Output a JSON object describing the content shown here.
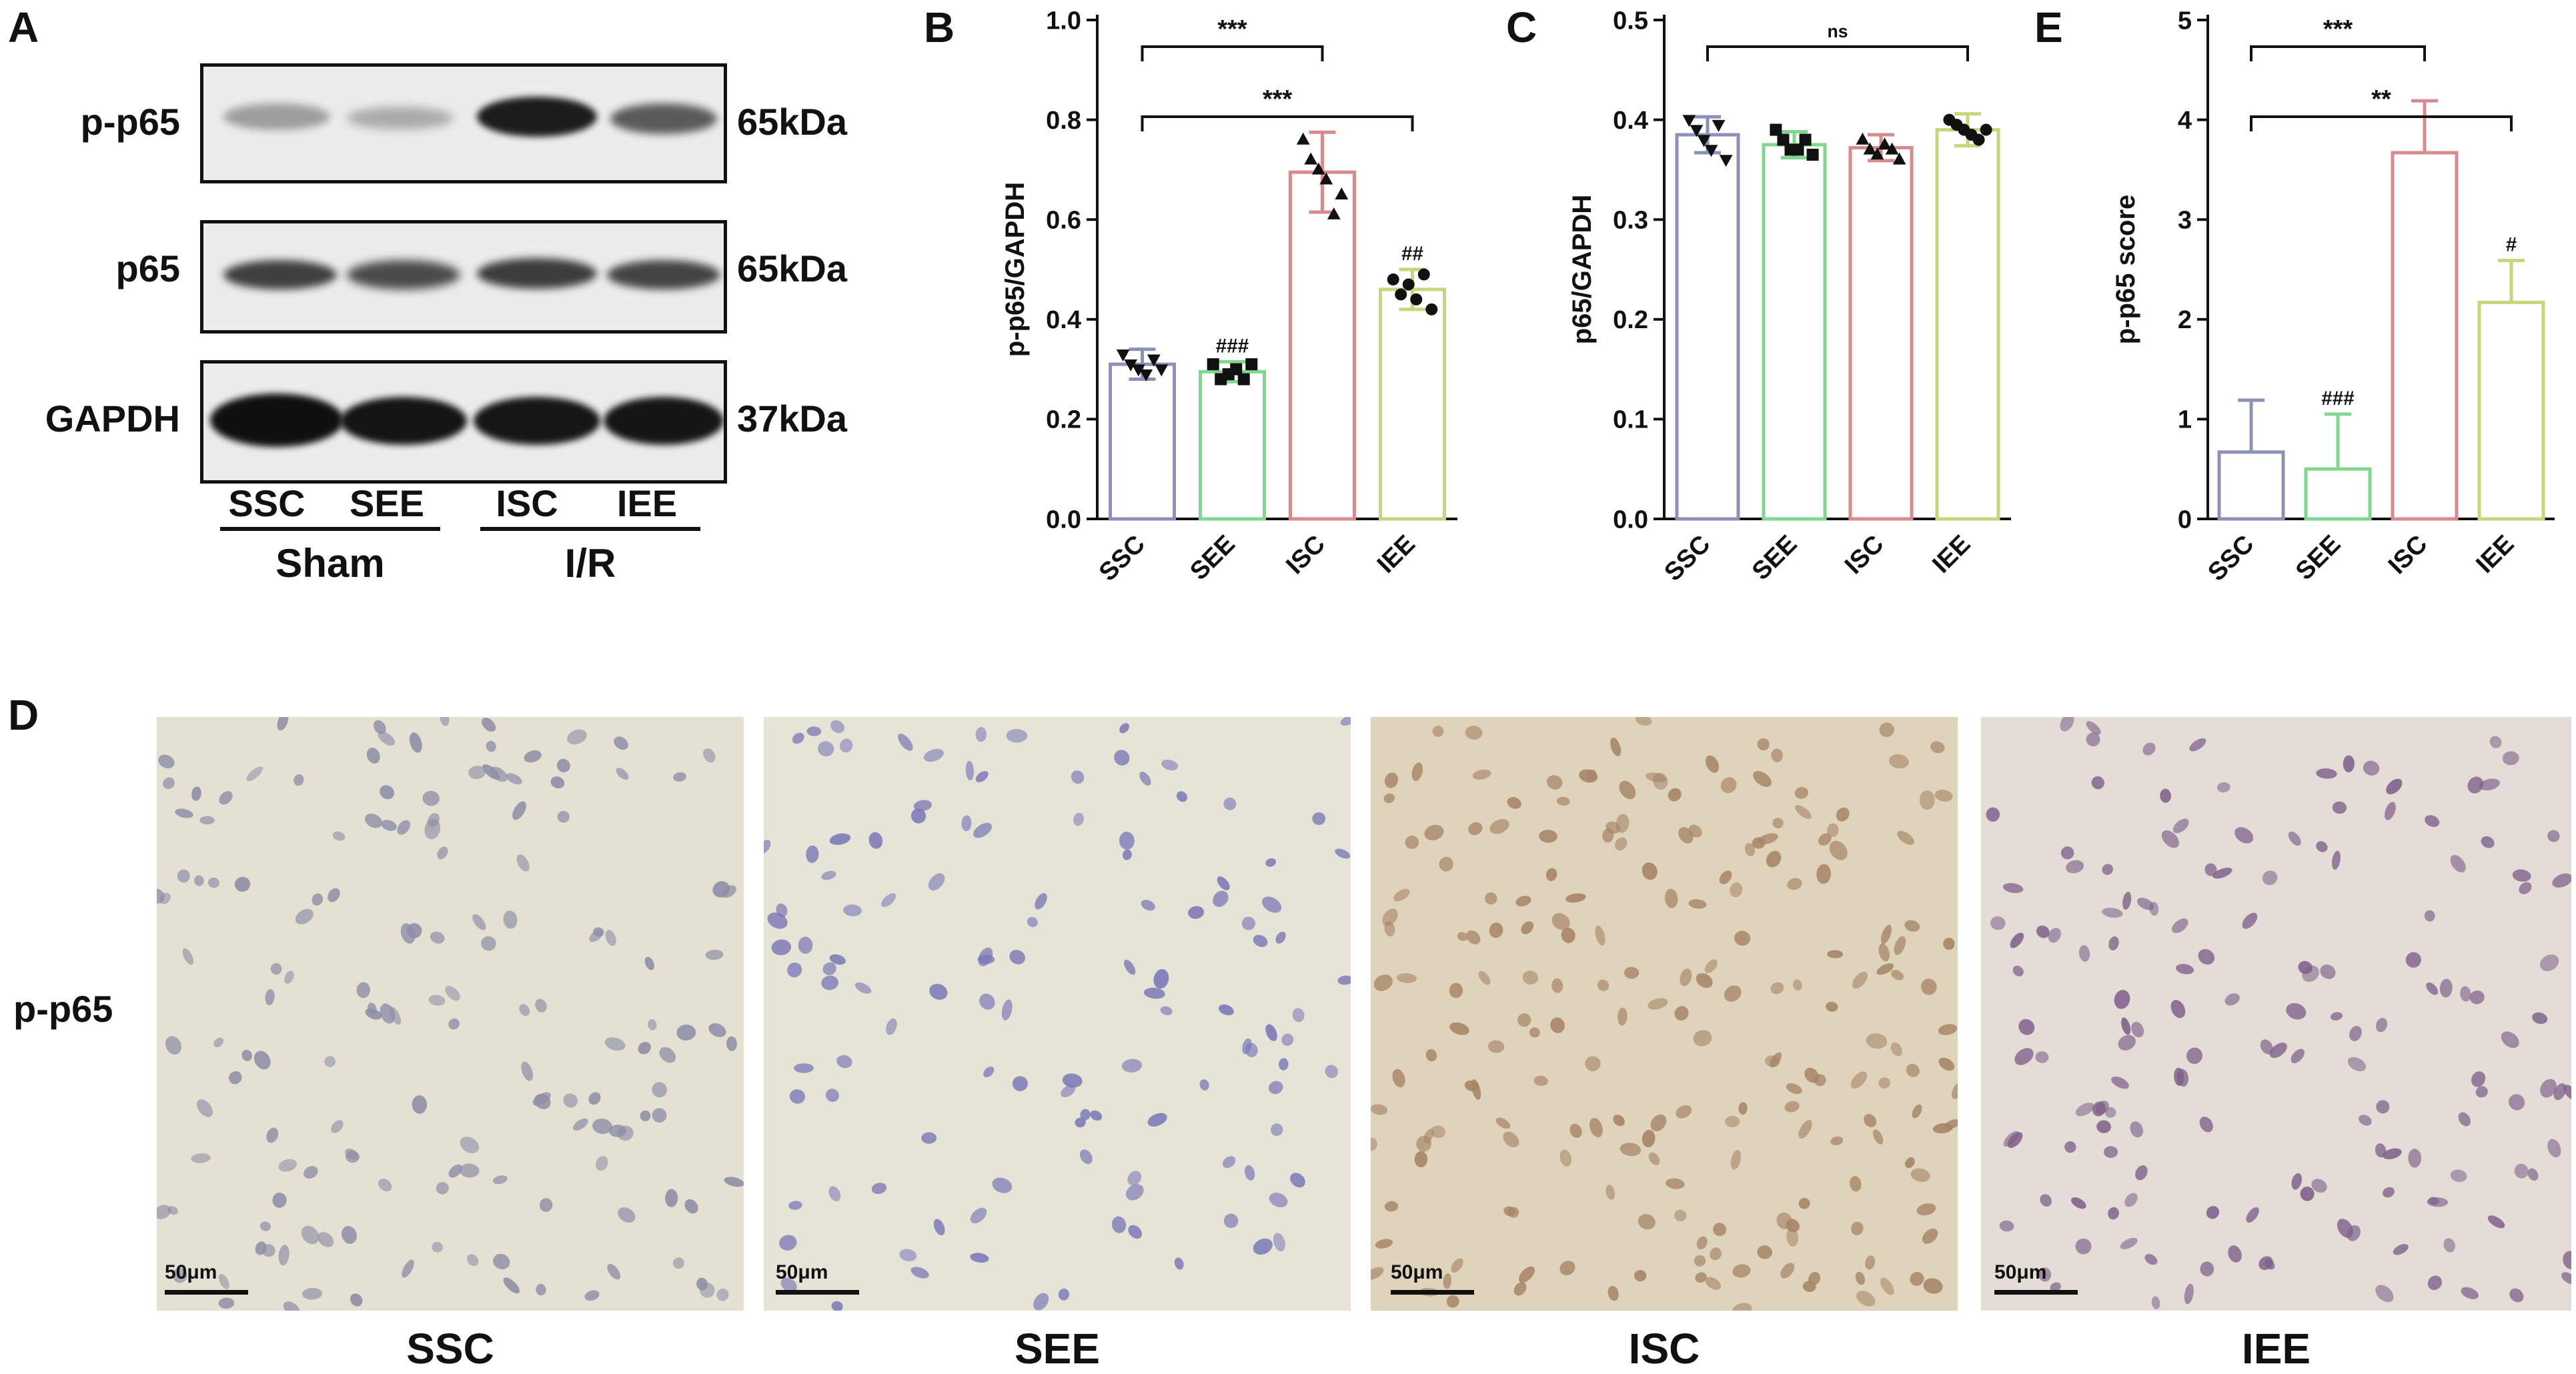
{
  "panel_letters": {
    "a": "A",
    "b": "B",
    "c": "C",
    "d": "D",
    "e": "E"
  },
  "blot": {
    "rows": [
      {
        "label": "p-p65",
        "kda": "65kDa"
      },
      {
        "label": "p65",
        "kda": "65kDa"
      },
      {
        "label": "GAPDH",
        "kda": "37kDa"
      }
    ],
    "lanes": [
      "SSC",
      "SEE",
      "ISC",
      "IEE"
    ],
    "groups": [
      "Sham",
      "I/R"
    ]
  },
  "chart_data": [
    {
      "type": "bar",
      "panel": "B",
      "categories": [
        "SSC",
        "SEE",
        "ISC",
        "IEE"
      ],
      "values": [
        0.31,
        0.295,
        0.695,
        0.46
      ],
      "errors": [
        0.03,
        0.02,
        0.08,
        0.04
      ],
      "points": [
        [
          0.33,
          0.31,
          0.3,
          0.29,
          0.32,
          0.3
        ],
        [
          0.31,
          0.28,
          0.29,
          0.3,
          0.28,
          0.31
        ],
        [
          0.76,
          0.72,
          0.7,
          0.68,
          0.61,
          0.65
        ],
        [
          0.48,
          0.45,
          0.47,
          0.44,
          0.49,
          0.42
        ]
      ],
      "markers": [
        "triangle-down",
        "square",
        "triangle-up",
        "circle"
      ],
      "colors": [
        "#8b91b8",
        "#7fd88e",
        "#d98a8c",
        "#c6d67a"
      ],
      "ylabel": "p-p65/GAPDH",
      "ylim": [
        0,
        1.0
      ],
      "yticks": [
        "0.0",
        "0.2",
        "0.4",
        "0.6",
        "0.8",
        "1.0"
      ],
      "group_marks": [
        "",
        "###",
        "",
        "##"
      ],
      "brackets": [
        {
          "from": 0,
          "to": 2,
          "label": "***"
        },
        {
          "from": 0,
          "to": 3,
          "label": "***"
        }
      ]
    },
    {
      "type": "bar",
      "panel": "C",
      "categories": [
        "SSC",
        "SEE",
        "ISC",
        "IEE"
      ],
      "values": [
        0.385,
        0.375,
        0.372,
        0.39
      ],
      "errors": [
        0.018,
        0.013,
        0.013,
        0.016
      ],
      "points": [
        [
          0.4,
          0.39,
          0.38,
          0.37,
          0.395,
          0.36
        ],
        [
          0.39,
          0.38,
          0.37,
          0.37,
          0.38,
          0.365
        ],
        [
          0.38,
          0.37,
          0.365,
          0.375,
          0.37,
          0.36
        ],
        [
          0.4,
          0.395,
          0.39,
          0.385,
          0.38,
          0.39
        ]
      ],
      "markers": [
        "triangle-down",
        "square",
        "triangle-up",
        "circle"
      ],
      "colors": [
        "#8b91b8",
        "#7fd88e",
        "#d98a8c",
        "#c6d67a"
      ],
      "ylabel": "p65/GAPDH",
      "ylim": [
        0,
        0.5
      ],
      "yticks": [
        "0.0",
        "0.1",
        "0.2",
        "0.3",
        "0.4",
        "0.5"
      ],
      "group_marks": [
        "",
        "",
        "",
        ""
      ],
      "brackets": [
        {
          "from": 0,
          "to": 3,
          "label": "ns"
        }
      ]
    },
    {
      "type": "bar",
      "panel": "E",
      "categories": [
        "SSC",
        "SEE",
        "ISC",
        "IEE"
      ],
      "values": [
        0.67,
        0.5,
        3.67,
        2.17
      ],
      "errors": [
        0.52,
        0.55,
        0.52,
        0.42
      ],
      "points": [
        [],
        [],
        [],
        []
      ],
      "markers": [
        "",
        "",
        "",
        ""
      ],
      "colors": [
        "#8b91b8",
        "#7fd88e",
        "#d98a8c",
        "#c6d67a"
      ],
      "ylabel": "p-p65 score",
      "ylim": [
        0,
        5
      ],
      "yticks": [
        "0",
        "1",
        "2",
        "3",
        "4",
        "5"
      ],
      "group_marks": [
        "",
        "###",
        "",
        "#"
      ],
      "brackets": [
        {
          "from": 0,
          "to": 2,
          "label": "***"
        },
        {
          "from": 0,
          "to": 3,
          "label": "**"
        }
      ]
    }
  ],
  "micrographs": {
    "row_label": "p-p65",
    "scale_label": "50μm",
    "panels": [
      {
        "caption": "SSC",
        "bg": "#e4e1d3",
        "nucleus": "#8d8da6",
        "count": 150
      },
      {
        "caption": "SEE",
        "bg": "#e6e4d6",
        "nucleus": "#7a78b6",
        "count": 120
      },
      {
        "caption": "ISC",
        "bg": "#dfd3bb",
        "nucleus": "#a68466",
        "count": 200
      },
      {
        "caption": "IEE",
        "bg": "#e3ddd5",
        "nucleus": "#7e5f8a",
        "count": 150
      }
    ]
  }
}
